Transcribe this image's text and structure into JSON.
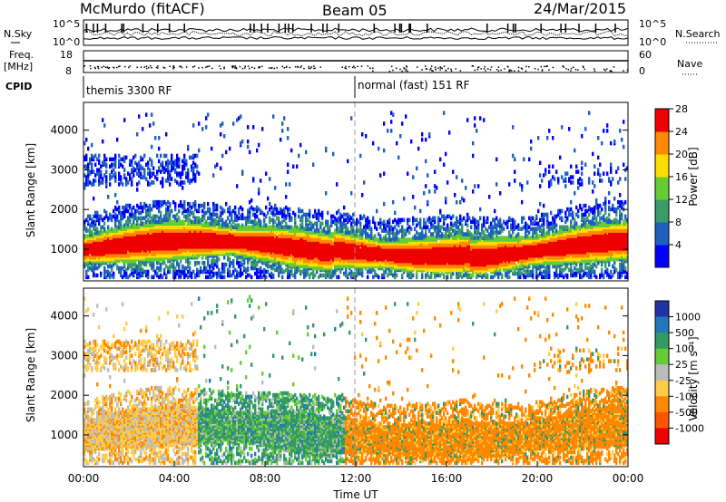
{
  "header": {
    "title": "McMurdo (fitACF)",
    "beam": "Beam 05",
    "date": "24/Mar/2015"
  },
  "top_panels": {
    "left_labels": [
      "N.Sky",
      "Freq.",
      "[MHz]",
      "CPID"
    ],
    "right_labels": [
      "N.Search",
      "Nave"
    ],
    "noise_ticks_left": [
      "10^5",
      "10^0"
    ],
    "noise_ticks_right": [
      "10^5",
      "10^0"
    ],
    "freq_ticks": [
      "18",
      "8"
    ],
    "nave_ticks": [
      "60",
      "0"
    ],
    "cpid_segments": [
      {
        "label": "themis 3300 RF",
        "start_hour": 0
      },
      {
        "label": "normal (fast) 151 RF",
        "start_hour": 12
      }
    ]
  },
  "x_axis": {
    "label": "Time UT",
    "ticks": [
      "00:00",
      "04:00",
      "08:00",
      "12:00",
      "16:00",
      "20:00",
      "00:00"
    ]
  },
  "chart_data": [
    {
      "type": "heatmap",
      "name": "power",
      "ylabel": "Slant Range [km]",
      "ylim": [
        200,
        4700
      ],
      "yticks": [
        "1000",
        "2000",
        "3000",
        "4000"
      ],
      "xlim_hours": [
        0,
        24
      ],
      "colorbar": {
        "label": "Power [dB]",
        "ticks": [
          "4",
          "8",
          "12",
          "16",
          "20",
          "24",
          "28"
        ],
        "colors": [
          "#0000ff",
          "#1f5fbf",
          "#3a9a6a",
          "#66cc33",
          "#ffdd00",
          "#ff8800",
          "#ee0000"
        ]
      }
    },
    {
      "type": "heatmap",
      "name": "velocity",
      "ylabel": "Slant Range [km]",
      "ylim": [
        200,
        4700
      ],
      "yticks": [
        "1000",
        "2000",
        "3000",
        "4000"
      ],
      "xlim_hours": [
        0,
        24
      ],
      "colorbar": {
        "label": "Velocity [m s⁻¹]",
        "ticks": [
          "1000",
          "500",
          "100",
          "25",
          "-25",
          "-100",
          "-500",
          "-1000"
        ],
        "colors": [
          "#2233aa",
          "#2277bb",
          "#339966",
          "#66cc33",
          "#bbbbbb",
          "#ffcc44",
          "#ff8800",
          "#ff5500",
          "#ee0000"
        ]
      }
    }
  ]
}
